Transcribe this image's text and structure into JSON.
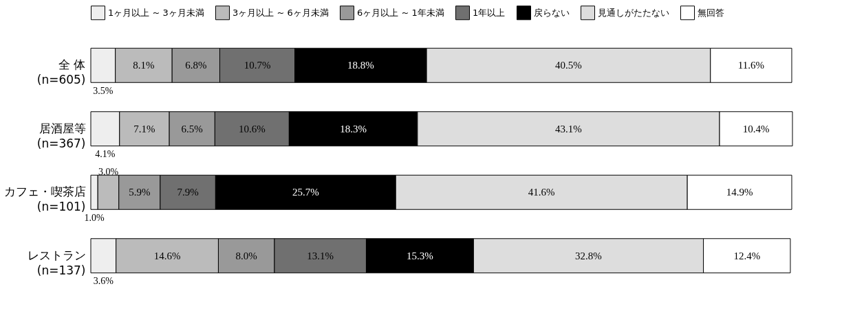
{
  "chart_data": {
    "type": "bar",
    "orientation": "horizontal",
    "stacked": true,
    "legend": "top",
    "categories": [
      "全 体\n(n=605)",
      "居酒屋等\n(n=367)",
      "カフェ・喫茶店\n(n=101)",
      "レストラン\n(n=137)"
    ],
    "series": [
      {
        "name": "1ヶ月以上 ~ 3ヶ月未満",
        "color": "#eeeeee",
        "values": [
          3.5,
          4.1,
          1.0,
          3.6
        ],
        "value_labels": [
          "3.5%",
          "4.1%",
          "1.0%",
          "3.6%"
        ]
      },
      {
        "name": "3ヶ月以上 ~ 6ヶ月未満",
        "color": "#bbbbbb",
        "values": [
          8.1,
          7.1,
          3.0,
          14.6
        ],
        "value_labels": [
          "8.1%",
          "7.1%",
          "3.0%",
          "14.6%"
        ]
      },
      {
        "name": "6ヶ月以上 ~ 1年未満",
        "color": "#999999",
        "values": [
          6.8,
          6.5,
          5.9,
          8.0
        ],
        "value_labels": [
          "6.8%",
          "6.5%",
          "5.9%",
          "8.0%"
        ]
      },
      {
        "name": "1年以上",
        "color": "#707070",
        "values": [
          10.7,
          10.6,
          7.9,
          13.1
        ],
        "value_labels": [
          "10.7%",
          "10.6%",
          "7.9%",
          "13.1%"
        ]
      },
      {
        "name": "戻らない",
        "color": "#000000",
        "values": [
          18.8,
          18.3,
          25.7,
          15.3
        ],
        "value_labels": [
          "18.8%",
          "18.3%",
          "25.7%",
          "15.3%"
        ]
      },
      {
        "name": "見通しがたたない",
        "color": "#dddddd",
        "values": [
          40.5,
          43.1,
          41.6,
          32.8
        ],
        "value_labels": [
          "40.5%",
          "43.1%",
          "41.6%",
          "32.8%"
        ]
      },
      {
        "name": "無回答",
        "color": "#ffffff",
        "values": [
          11.6,
          10.4,
          14.9,
          12.4
        ],
        "value_labels": [
          "11.6%",
          "10.4%",
          "14.9%",
          "12.4%"
        ]
      }
    ]
  }
}
